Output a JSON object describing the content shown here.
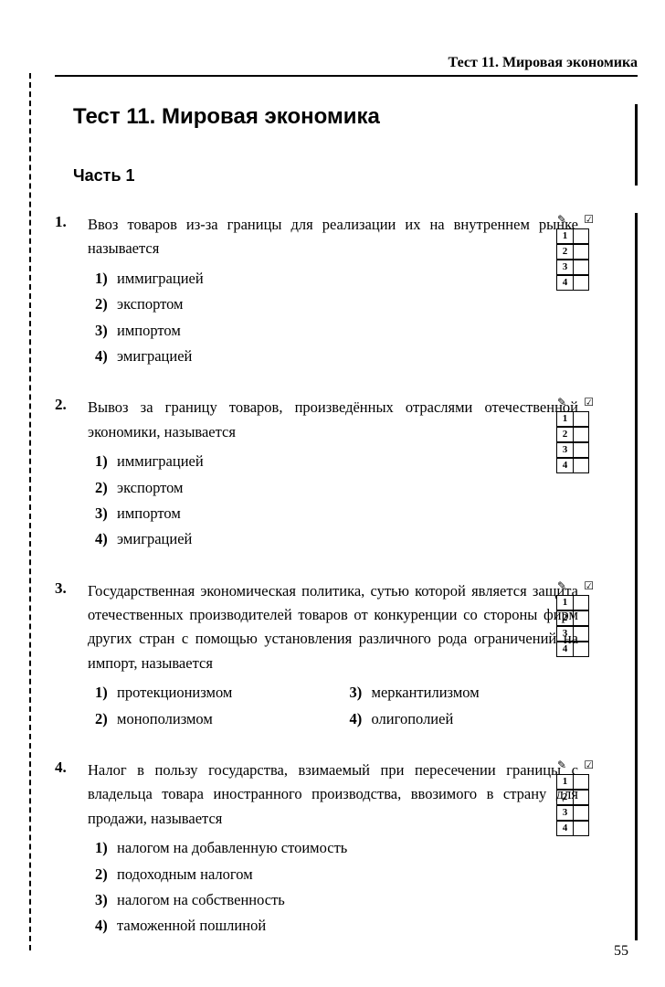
{
  "header": {
    "running_title": "Тест 11. Мировая экономика"
  },
  "title": "Тест 11. Мировая экономика",
  "part": "Часть 1",
  "questions": [
    {
      "num": "1.",
      "text": "Ввоз товаров из-за границы для реализации их на внутреннем рынке называется",
      "layout": "single",
      "options": [
        {
          "n": "1)",
          "t": "иммиграцией"
        },
        {
          "n": "2)",
          "t": "экспортом"
        },
        {
          "n": "3)",
          "t": "импортом"
        },
        {
          "n": "4)",
          "t": "эмиграцией"
        }
      ]
    },
    {
      "num": "2.",
      "text": "Вывоз за границу товаров, произведённых отраслями отечественной экономики, называется",
      "layout": "single",
      "options": [
        {
          "n": "1)",
          "t": "иммиграцией"
        },
        {
          "n": "2)",
          "t": "экспортом"
        },
        {
          "n": "3)",
          "t": "импортом"
        },
        {
          "n": "4)",
          "t": "эмиграцией"
        }
      ]
    },
    {
      "num": "3.",
      "text": "Государственная экономическая политика, сутью которой является защита отечественных производителей товаров от конкуренции со стороны фирм других стран с помощью установления различного рода ограничений на импорт, называется",
      "layout": "two-col",
      "options": [
        {
          "n": "1)",
          "t": "протекционизмом"
        },
        {
          "n": "3)",
          "t": "меркантилизмом"
        },
        {
          "n": "2)",
          "t": "монополизмом"
        },
        {
          "n": "4)",
          "t": "олигополией"
        }
      ]
    },
    {
      "num": "4.",
      "text": "Налог в пользу государства, взимаемый при пересечении границы с владельца товара иностранного производства, ввозимого в страну для продажи, называется",
      "layout": "single",
      "options": [
        {
          "n": "1)",
          "t": "налогом на добавленную стоимость"
        },
        {
          "n": "2)",
          "t": "подоходным налогом"
        },
        {
          "n": "3)",
          "t": "налогом на собственность"
        },
        {
          "n": "4)",
          "t": "таможенной пошлиной"
        }
      ]
    }
  ],
  "answer_box": {
    "rows": [
      "1",
      "2",
      "3",
      "4"
    ]
  },
  "page_number": "55"
}
